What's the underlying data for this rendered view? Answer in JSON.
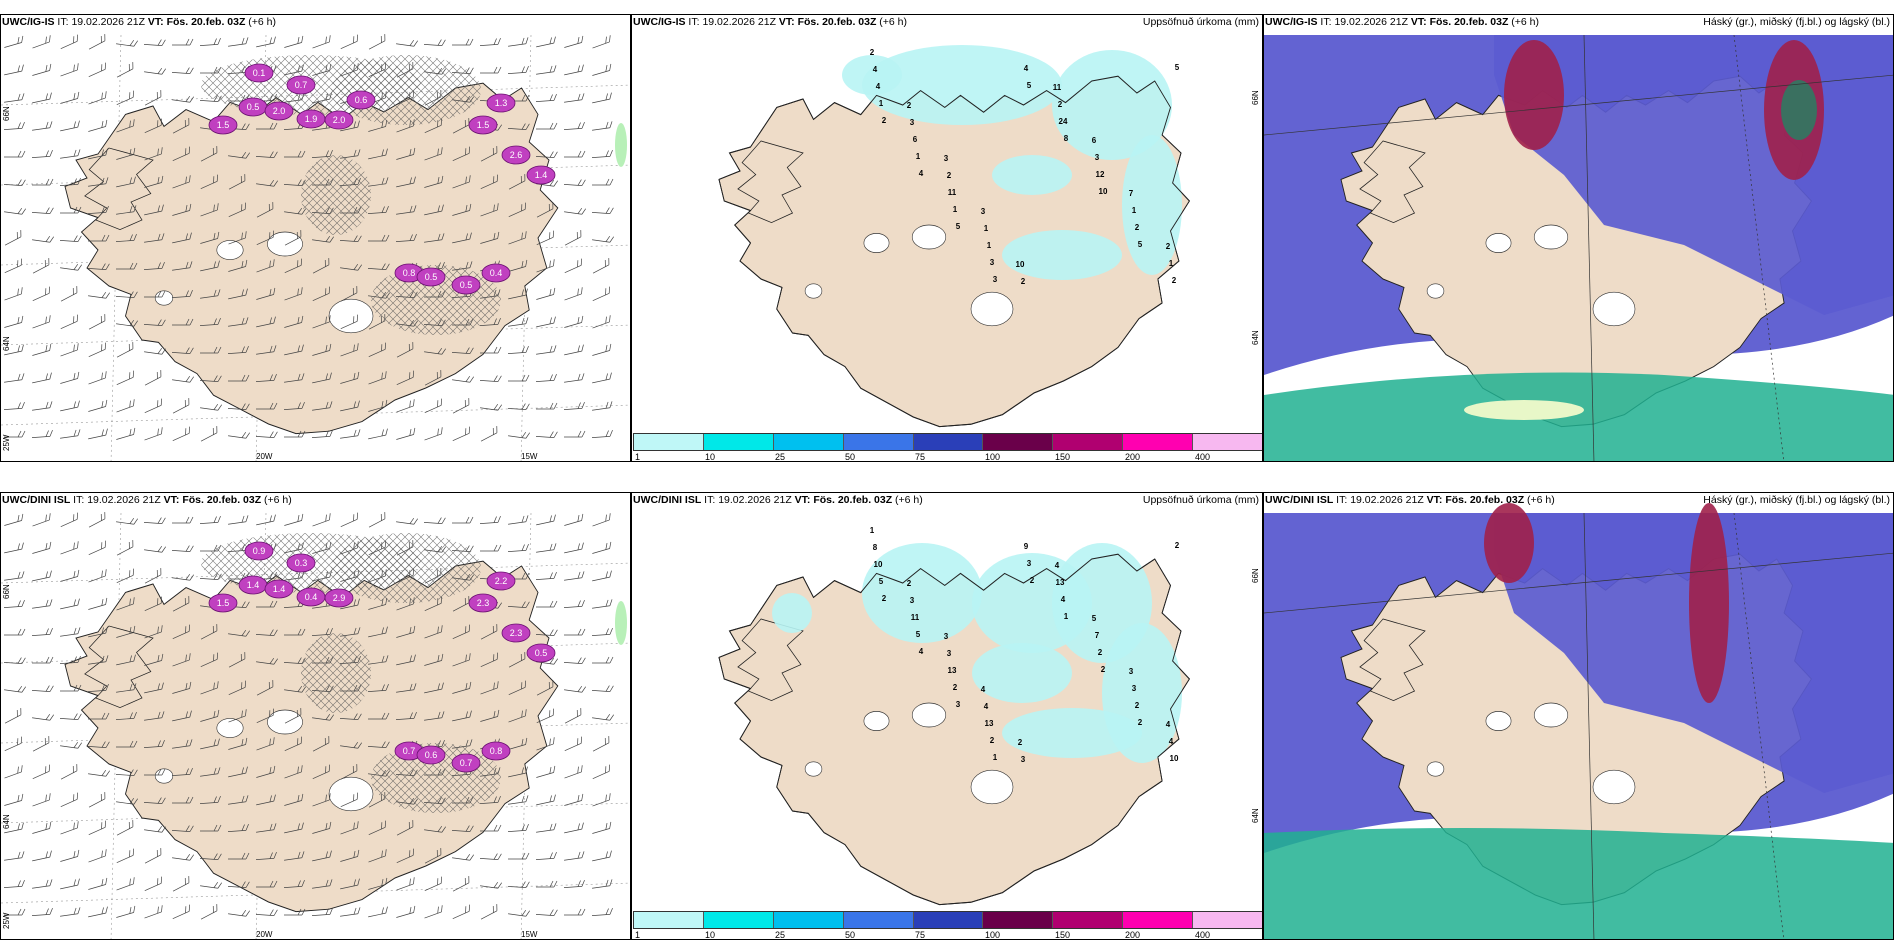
{
  "panels": [
    {
      "id": "wind_ig",
      "source": "UWC/IG-IS",
      "it_label": "IT:",
      "it": "19.02.2026 21Z",
      "vt_label": "VT:",
      "vt": "Fös. 20.feb. 03Z",
      "lead": "(+6 h)",
      "right": ""
    },
    {
      "id": "precip_ig",
      "source": "UWC/IG-IS",
      "it_label": "IT:",
      "it": "19.02.2026 21Z",
      "vt_label": "VT:",
      "vt": "Fös. 20.feb. 03Z",
      "lead": "(+6 h)",
      "right": "Uppsöfnuð úrkoma (mm)"
    },
    {
      "id": "cloud_ig",
      "source": "UWC/IG-IS",
      "it_label": "IT:",
      "it": "19.02.2026 21Z",
      "vt_label": "VT:",
      "vt": "Fös. 20.feb. 03Z",
      "lead": "(+6 h)",
      "right": "Háský (gr.), miðský (fj.bl.) og lágský (bl.)"
    },
    {
      "id": "wind_dini",
      "source": "UWC/DINI ISL",
      "it_label": "IT:",
      "it": "19.02.2026 21Z",
      "vt_label": "VT:",
      "vt": "Fös. 20.feb. 03Z",
      "lead": "(+6\nh)",
      "right": ""
    },
    {
      "id": "precip_dini",
      "source": "UWC/DINI ISL",
      "it_label": "IT:",
      "it": "19.02.2026 21Z",
      "vt_label": "VT:",
      "vt": "Fös. 20.feb. 03Z",
      "lead": "(+6 h)",
      "right": "Uppsöfnuð úrkoma (mm)"
    },
    {
      "id": "cloud_dini",
      "source": "UWC/DINI ISL",
      "it_label": "IT:",
      "it": "19.02.2026 21Z",
      "vt_label": "VT:",
      "vt": "Fös. 20.feb. 03Z",
      "lead": "(+6 h)",
      "right": "Háský (gr.), miðský (fj.bl.) og lágský (bl.)"
    }
  ],
  "colorbar": {
    "labels": [
      "1",
      "10",
      "25",
      "50",
      "75",
      "100",
      "150",
      "200",
      "400"
    ],
    "colors": [
      "#bff7f7",
      "#00e8e8",
      "#00c0ef",
      "#3a75e8",
      "#2a3fb8",
      "#6a004a",
      "#b00070",
      "#ff00b0",
      "#f7b8f0"
    ]
  },
  "axis_labels": {
    "lat_66": "66N",
    "lat_64": "64N",
    "lon_25": "25W",
    "lon_20": "20W",
    "lon_15": "15W"
  },
  "precip_ig_values": [
    "2",
    "2",
    "3",
    "3",
    "10",
    "11",
    "6",
    "7",
    "2",
    "4",
    "3",
    "2",
    "1",
    "2",
    "2",
    "3",
    "1",
    "1",
    "4",
    "6",
    "11",
    "1",
    "4",
    "24",
    "12",
    "2",
    "2",
    "1",
    "1",
    "1",
    "3",
    "5",
    "8",
    "10",
    "5",
    "5",
    "2",
    "4",
    "5",
    "3"
  ],
  "precip_dini_values": [
    "1",
    "2",
    "3",
    "4",
    "2",
    "4",
    "5",
    "3",
    "4",
    "8",
    "3",
    "3",
    "4",
    "3",
    "13",
    "7",
    "3",
    "4",
    "10",
    "11",
    "13",
    "13",
    "9",
    "4",
    "2",
    "2",
    "10",
    "5",
    "5",
    "2",
    "2",
    "3",
    "1",
    "2",
    "2",
    "2",
    "2",
    "4",
    "3",
    "1",
    "2"
  ],
  "wind_ig_values": [
    "0.1",
    "0.5",
    "2.0",
    "0.7",
    "1.9",
    "2.0",
    "1.3",
    "1.5",
    "2.6",
    "1.4",
    "0.8",
    "0.5",
    "0.5",
    "0.4",
    "1.5",
    "0.6"
  ],
  "wind_dini_values": [
    "0.9",
    "1.4",
    "1.4",
    "0.3",
    "0.4",
    "2.9",
    "2.2",
    "2.3",
    "2.3",
    "0.5",
    "0.7",
    "0.6",
    "0.7",
    "0.8",
    "1.5"
  ],
  "colors": {
    "land": "#eedcc8",
    "precip_light": "#b8f4f4",
    "wind_purple": "#c040c0",
    "cloud_blue": "#5b5bd0",
    "cloud_red": "#a0204a",
    "cloud_green": "#20b090"
  }
}
